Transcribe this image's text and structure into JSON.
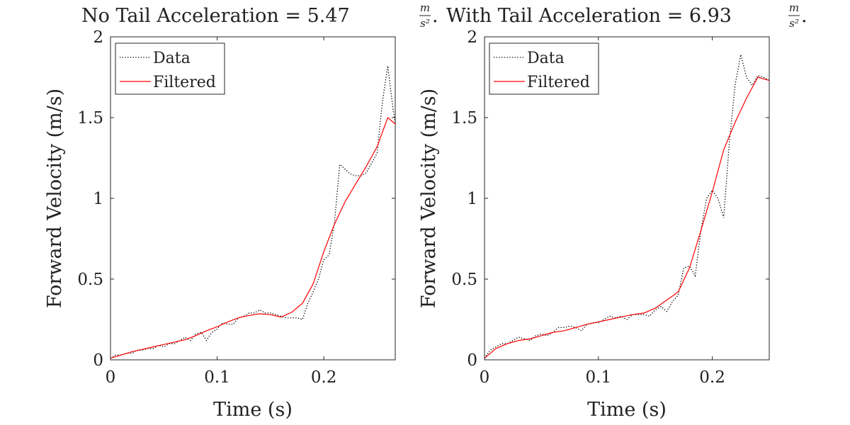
{
  "figure": {
    "title_left": {
      "prefix": "No Tail Acceleration = 5.47 ",
      "unit_num": "m",
      "unit_den": "s²",
      "suffix": "."
    },
    "title_right": {
      "prefix": "With Tail Acceleration = 6.93 ",
      "unit_num": "m",
      "unit_den": "s²",
      "suffix": "."
    }
  },
  "chart_data": [
    {
      "type": "line",
      "xlabel": "Time (s)",
      "ylabel": "Forward Velocity (m/s)",
      "xlim": [
        0,
        0.267
      ],
      "ylim": [
        0,
        2
      ],
      "xticks": [
        0,
        0.1,
        0.2
      ],
      "xtick_labels": [
        "0",
        "0.1",
        "0.2"
      ],
      "yticks": [
        0,
        0.5,
        1,
        1.5,
        2
      ],
      "ytick_labels": [
        "0",
        "0.5",
        "1",
        "1.5",
        "2"
      ],
      "grid": false,
      "legend_position": "top-left",
      "series": [
        {
          "name": "Data",
          "color": "#000000",
          "style": "dotted",
          "x": [
            0,
            0.005,
            0.01,
            0.015,
            0.02,
            0.025,
            0.03,
            0.035,
            0.04,
            0.045,
            0.05,
            0.055,
            0.06,
            0.065,
            0.07,
            0.075,
            0.08,
            0.085,
            0.09,
            0.095,
            0.1,
            0.105,
            0.11,
            0.115,
            0.12,
            0.125,
            0.13,
            0.135,
            0.14,
            0.145,
            0.15,
            0.155,
            0.16,
            0.165,
            0.17,
            0.175,
            0.18,
            0.185,
            0.19,
            0.195,
            0.2,
            0.205,
            0.21,
            0.215,
            0.22,
            0.225,
            0.23,
            0.235,
            0.24,
            0.245,
            0.25,
            0.255,
            0.26,
            0.265,
            0.267
          ],
          "y": [
            0.01,
            0.03,
            0.03,
            0.04,
            0.04,
            0.06,
            0.06,
            0.07,
            0.07,
            0.09,
            0.08,
            0.1,
            0.1,
            0.12,
            0.14,
            0.12,
            0.16,
            0.17,
            0.12,
            0.17,
            0.19,
            0.23,
            0.22,
            0.22,
            0.26,
            0.27,
            0.29,
            0.29,
            0.31,
            0.29,
            0.29,
            0.28,
            0.27,
            0.26,
            0.26,
            0.26,
            0.25,
            0.35,
            0.42,
            0.5,
            0.62,
            0.65,
            0.85,
            1.21,
            1.18,
            1.15,
            1.14,
            1.14,
            1.16,
            1.22,
            1.28,
            1.6,
            1.82,
            1.55,
            1.47
          ]
        },
        {
          "name": "Filtered",
          "color": "#ff0000",
          "style": "solid",
          "x": [
            0,
            0.01,
            0.02,
            0.03,
            0.04,
            0.05,
            0.06,
            0.07,
            0.08,
            0.09,
            0.1,
            0.11,
            0.12,
            0.13,
            0.14,
            0.15,
            0.16,
            0.17,
            0.18,
            0.19,
            0.2,
            0.21,
            0.22,
            0.23,
            0.24,
            0.25,
            0.26,
            0.267
          ],
          "y": [
            0.01,
            0.03,
            0.05,
            0.065,
            0.08,
            0.095,
            0.11,
            0.125,
            0.15,
            0.18,
            0.205,
            0.235,
            0.26,
            0.275,
            0.285,
            0.28,
            0.265,
            0.295,
            0.35,
            0.47,
            0.67,
            0.84,
            0.98,
            1.09,
            1.2,
            1.32,
            1.5,
            1.46
          ]
        }
      ]
    },
    {
      "type": "line",
      "xlabel": "Time (s)",
      "ylabel": "Forward Velocity (m/s)",
      "xlim": [
        0,
        0.25
      ],
      "ylim": [
        0,
        2
      ],
      "xticks": [
        0,
        0.1,
        0.2
      ],
      "xtick_labels": [
        "0",
        "0.1",
        "0.2"
      ],
      "yticks": [
        0,
        0.5,
        1,
        1.5,
        2
      ],
      "ytick_labels": [
        "0",
        "0.5",
        "1",
        "1.5",
        "2"
      ],
      "grid": false,
      "legend_position": "top-left",
      "series": [
        {
          "name": "Data",
          "color": "#000000",
          "style": "dotted",
          "x": [
            0,
            0.005,
            0.01,
            0.015,
            0.02,
            0.025,
            0.03,
            0.035,
            0.04,
            0.045,
            0.05,
            0.055,
            0.06,
            0.065,
            0.07,
            0.075,
            0.08,
            0.085,
            0.09,
            0.095,
            0.1,
            0.105,
            0.11,
            0.115,
            0.12,
            0.125,
            0.13,
            0.135,
            0.14,
            0.145,
            0.15,
            0.155,
            0.16,
            0.165,
            0.17,
            0.175,
            0.18,
            0.185,
            0.19,
            0.195,
            0.2,
            0.205,
            0.21,
            0.215,
            0.22,
            0.225,
            0.23,
            0.235,
            0.24,
            0.245,
            0.25
          ],
          "y": [
            0.01,
            0.06,
            0.08,
            0.1,
            0.1,
            0.12,
            0.14,
            0.13,
            0.12,
            0.15,
            0.16,
            0.15,
            0.17,
            0.2,
            0.2,
            0.21,
            0.2,
            0.18,
            0.22,
            0.23,
            0.23,
            0.25,
            0.27,
            0.26,
            0.27,
            0.25,
            0.28,
            0.28,
            0.28,
            0.27,
            0.31,
            0.33,
            0.3,
            0.36,
            0.4,
            0.57,
            0.58,
            0.52,
            0.8,
            1.0,
            1.05,
            1.0,
            0.88,
            1.35,
            1.7,
            1.89,
            1.75,
            1.7,
            1.76,
            1.75,
            1.73
          ]
        },
        {
          "name": "Filtered",
          "color": "#ff0000",
          "style": "solid",
          "x": [
            0,
            0.01,
            0.02,
            0.03,
            0.04,
            0.05,
            0.06,
            0.07,
            0.08,
            0.09,
            0.1,
            0.11,
            0.12,
            0.13,
            0.14,
            0.15,
            0.16,
            0.17,
            0.18,
            0.19,
            0.2,
            0.21,
            0.22,
            0.23,
            0.24,
            0.25
          ],
          "y": [
            0.01,
            0.07,
            0.1,
            0.12,
            0.13,
            0.15,
            0.17,
            0.18,
            0.2,
            0.22,
            0.235,
            0.25,
            0.265,
            0.28,
            0.29,
            0.32,
            0.37,
            0.42,
            0.57,
            0.8,
            1.04,
            1.3,
            1.47,
            1.62,
            1.75,
            1.73
          ]
        }
      ]
    }
  ]
}
